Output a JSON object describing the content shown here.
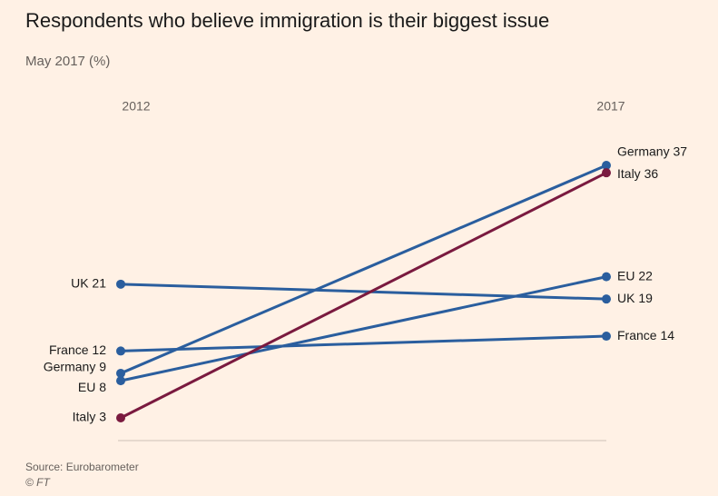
{
  "chart_data": {
    "type": "slope",
    "title": "Respondents who believe immigration is their biggest issue",
    "subtitle": "May 2017 (%)",
    "categories": [
      "2012",
      "2017"
    ],
    "series": [
      {
        "name": "UK",
        "color": "#2a5e9e",
        "values": [
          21,
          19
        ],
        "value_labels": [
          "UK 21",
          "UK 19"
        ]
      },
      {
        "name": "France",
        "color": "#2a5e9e",
        "values": [
          12,
          14
        ],
        "value_labels": [
          "France 12",
          "France 14"
        ]
      },
      {
        "name": "EU",
        "color": "#2a5e9e",
        "values": [
          8,
          22
        ],
        "value_labels": [
          "EU 8",
          "EU 22"
        ]
      },
      {
        "name": "Germany",
        "color": "#2a5e9e",
        "values": [
          9,
          37
        ],
        "value_labels": [
          "Germany 9",
          "Germany 37"
        ]
      },
      {
        "name": "Italy",
        "color": "#7a1a3f",
        "values": [
          3,
          36
        ],
        "value_labels": [
          "Italy 3",
          "Italy 36"
        ]
      }
    ],
    "source": "Source: Eurobarometer",
    "credit": "© FT"
  }
}
